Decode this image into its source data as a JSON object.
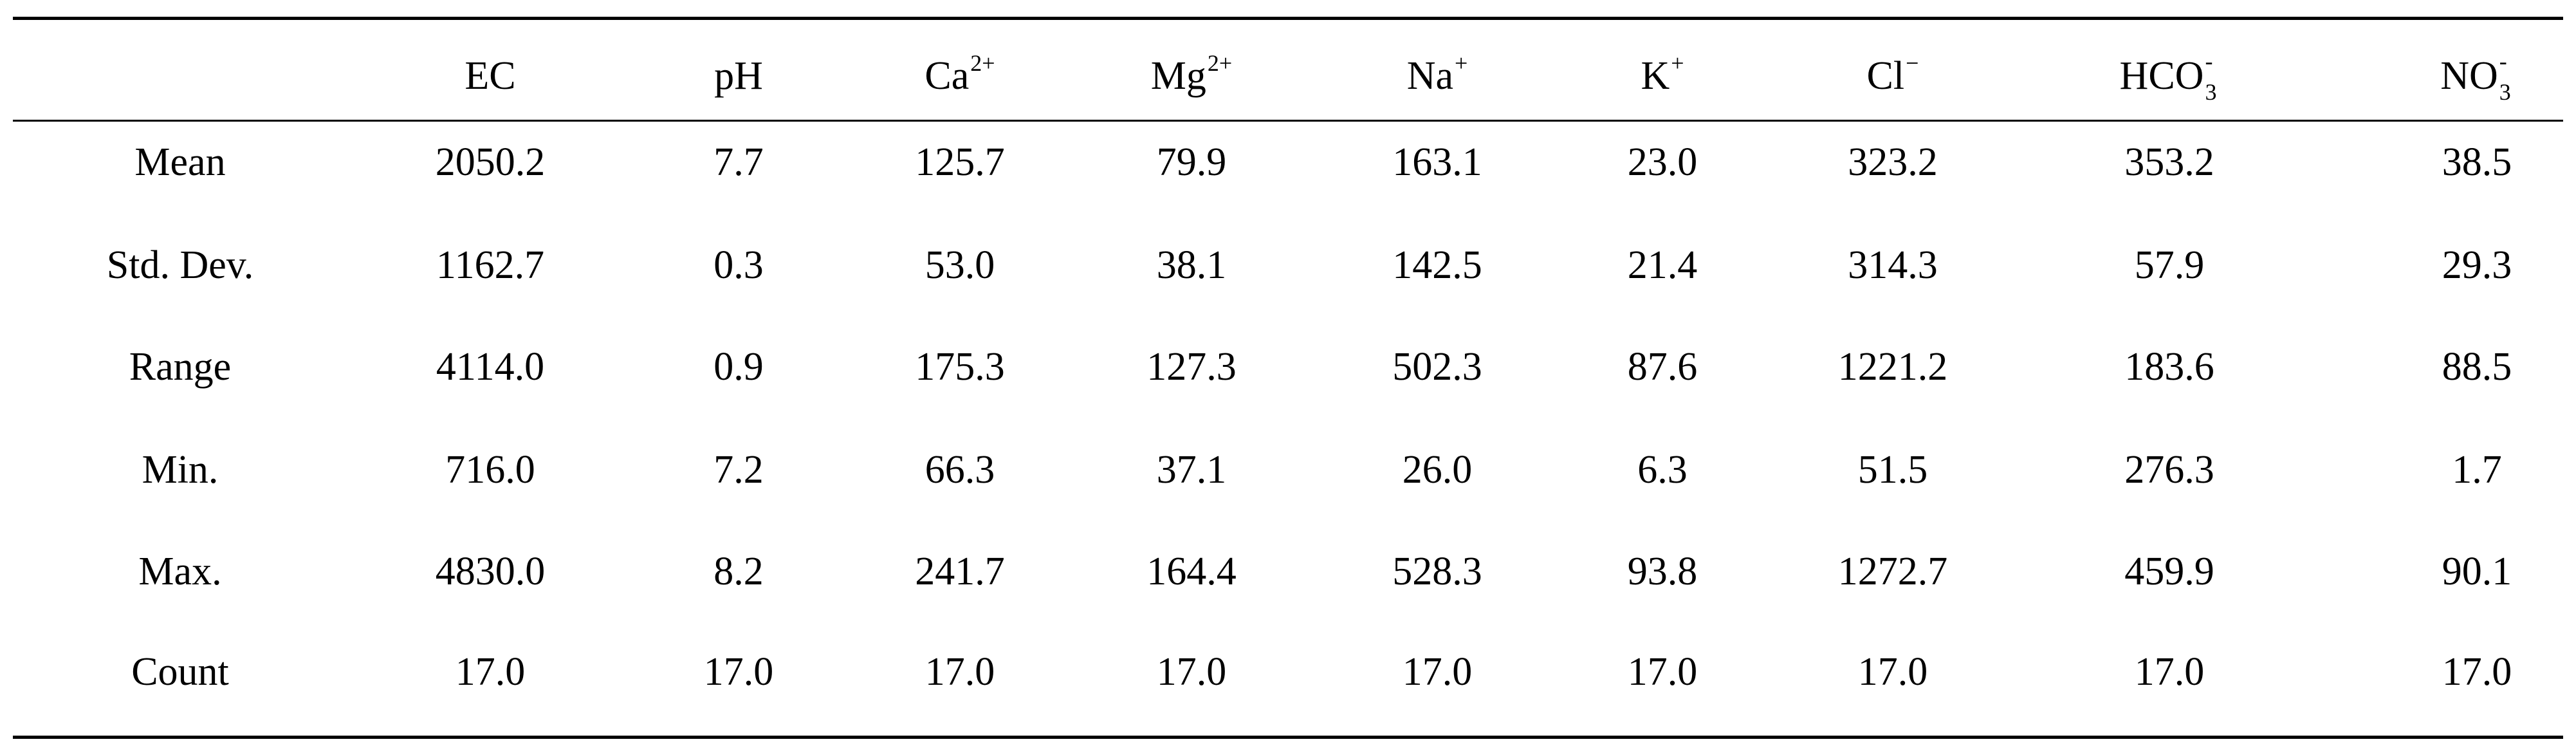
{
  "table": {
    "columns": [
      {
        "base": "EC",
        "sup": "",
        "sub": ""
      },
      {
        "base": "pH",
        "sup": "",
        "sub": ""
      },
      {
        "base": "Ca",
        "sup": "2+",
        "sub": ""
      },
      {
        "base": "Mg",
        "sup": "2+",
        "sub": ""
      },
      {
        "base": "Na",
        "sup": "+",
        "sub": ""
      },
      {
        "base": "K",
        "sup": "+",
        "sub": ""
      },
      {
        "base": "Cl",
        "sup": "−",
        "sub": ""
      },
      {
        "base": "HCO",
        "sup": "-",
        "sub": "3"
      },
      {
        "base": "NO",
        "sup": "-",
        "sub": "3"
      }
    ],
    "rows": [
      {
        "label": "Mean",
        "values": [
          "2050.2",
          "7.7",
          "125.7",
          "79.9",
          "163.1",
          "23.0",
          "323.2",
          "353.2",
          "38.5"
        ]
      },
      {
        "label": "Std. Dev.",
        "values": [
          "1162.7",
          "0.3",
          "53.0",
          "38.1",
          "142.5",
          "21.4",
          "314.3",
          "57.9",
          "29.3"
        ]
      },
      {
        "label": "Range",
        "values": [
          "4114.0",
          "0.9",
          "175.3",
          "127.3",
          "502.3",
          "87.6",
          "1221.2",
          "183.6",
          "88.5"
        ]
      },
      {
        "label": "Min.",
        "values": [
          "716.0",
          "7.2",
          "66.3",
          "37.1",
          "26.0",
          "6.3",
          "51.5",
          "276.3",
          "1.7"
        ]
      },
      {
        "label": "Max.",
        "values": [
          "4830.0",
          "8.2",
          "241.7",
          "164.4",
          "528.3",
          "93.8",
          "1272.7",
          "459.9",
          "90.1"
        ]
      },
      {
        "label": "Count",
        "values": [
          "17.0",
          "17.0",
          "17.0",
          "17.0",
          "17.0",
          "17.0",
          "17.0",
          "17.0",
          "17.0"
        ]
      }
    ]
  }
}
